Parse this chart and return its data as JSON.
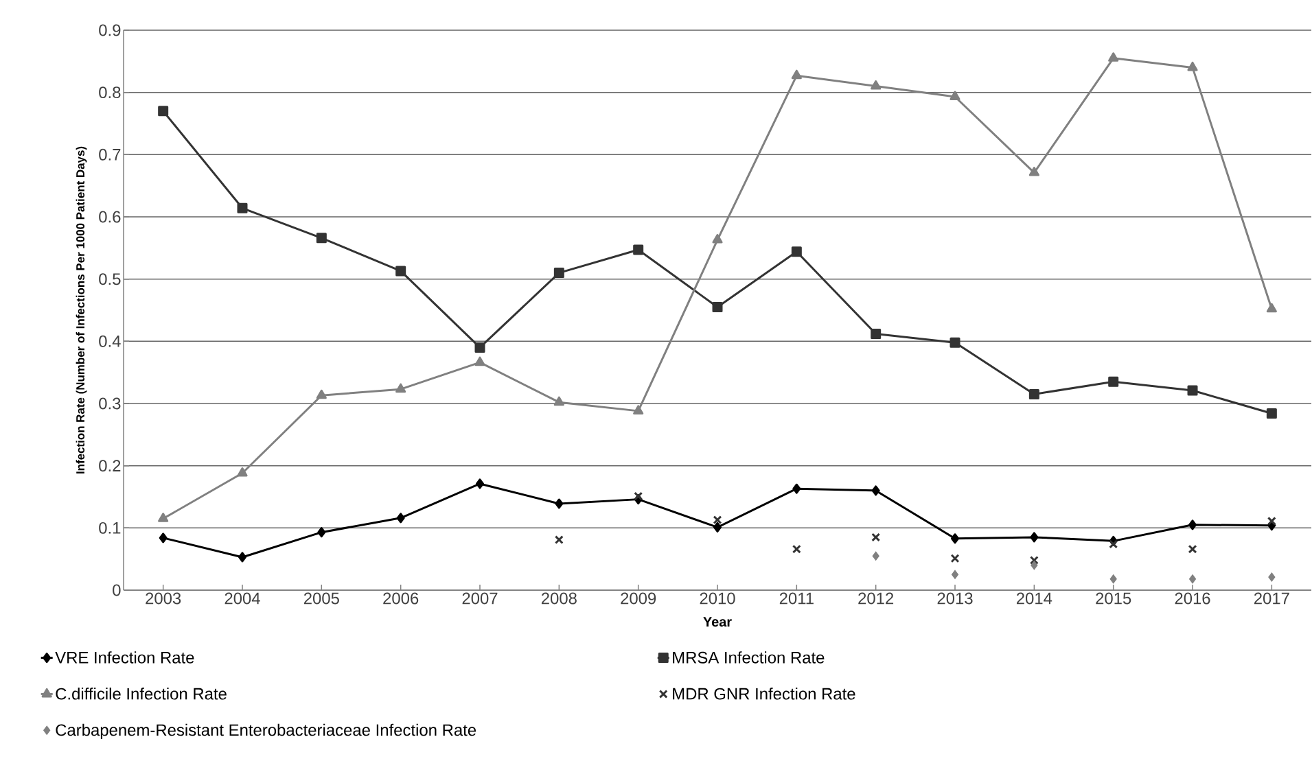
{
  "chart_data": {
    "type": "line",
    "xlabel": "Year",
    "ylabel": "Infection Rate (Number of Infections Per 1000 Patient Days)",
    "categories": [
      "2003",
      "2004",
      "2005",
      "2006",
      "2007",
      "2008",
      "2009",
      "2010",
      "2011",
      "2012",
      "2013",
      "2014",
      "2015",
      "2016",
      "2017"
    ],
    "series": [
      {
        "name": "VRE Infection Rate",
        "color": "#000000",
        "marker": "diamond",
        "values": [
          0.084,
          0.053,
          0.093,
          0.116,
          0.171,
          0.139,
          0.146,
          0.101,
          0.163,
          0.16,
          0.083,
          0.085,
          0.079,
          0.105,
          0.104
        ]
      },
      {
        "name": "MRSA Infection Rate",
        "color": "#333333",
        "marker": "square",
        "values": [
          0.77,
          0.614,
          0.566,
          0.513,
          0.39,
          0.51,
          0.547,
          0.455,
          0.544,
          0.412,
          0.398,
          0.315,
          0.335,
          0.321,
          0.284
        ]
      },
      {
        "name": "C.difficile Infection Rate",
        "color": "#808080",
        "marker": "triangle",
        "values": [
          0.115,
          0.188,
          0.313,
          0.323,
          0.366,
          0.302,
          0.288,
          0.563,
          0.827,
          0.81,
          0.793,
          0.671,
          0.855,
          0.84,
          0.452
        ]
      },
      {
        "name": "MDR GNR Infection Rate",
        "color": "#333333",
        "type": "scatter",
        "marker": "cross",
        "values": [
          null,
          null,
          null,
          null,
          null,
          0.081,
          0.151,
          0.113,
          0.066,
          0.085,
          0.051,
          0.048,
          0.074,
          0.066,
          0.111
        ]
      },
      {
        "name": "Carbapenem-Resistant Enterobacteriaceae Infection Rate",
        "color": "#808080",
        "type": "scatter",
        "marker": "diamond",
        "values": [
          null,
          null,
          null,
          null,
          null,
          null,
          null,
          null,
          null,
          0.055,
          0.025,
          0.04,
          0.018,
          0.018,
          0.021
        ]
      }
    ],
    "ylim": [
      0,
      0.9
    ],
    "yticks": [
      0,
      0.1,
      0.2,
      0.3,
      0.4,
      0.5,
      0.6,
      0.7,
      0.8,
      0.9
    ],
    "grid": "y",
    "legend": "bottom",
    "line_style": "solid"
  }
}
